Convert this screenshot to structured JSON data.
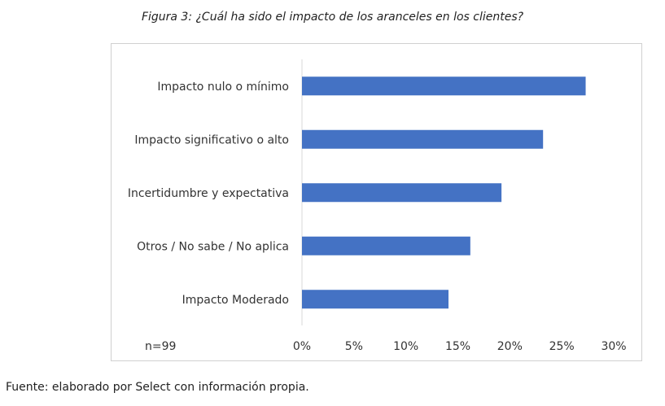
{
  "caption": "Figura 3: ¿Cuál ha sido el impacto de los aranceles en los clientes?",
  "source": "Fuente: elaborado por Select con información propia.",
  "colors": {
    "bar": "#4472C4",
    "axis": "#d9d9d9",
    "text": "#333333"
  },
  "chart_data": {
    "type": "bar",
    "orientation": "horizontal",
    "categories": [
      "Impacto nulo o mínimo",
      "Impacto significativo o alto",
      "Incertidumbre y expectativa",
      "Otros / No sabe / No aplica",
      "Impacto Moderado"
    ],
    "values": [
      27.3,
      23.2,
      19.2,
      16.2,
      14.1
    ],
    "xlim": [
      0,
      30
    ],
    "xticks": [
      "0%",
      "5%",
      "10%",
      "15%",
      "20%",
      "25%",
      "30%"
    ],
    "annotation": "n=99",
    "grid": false,
    "legend": "none"
  }
}
